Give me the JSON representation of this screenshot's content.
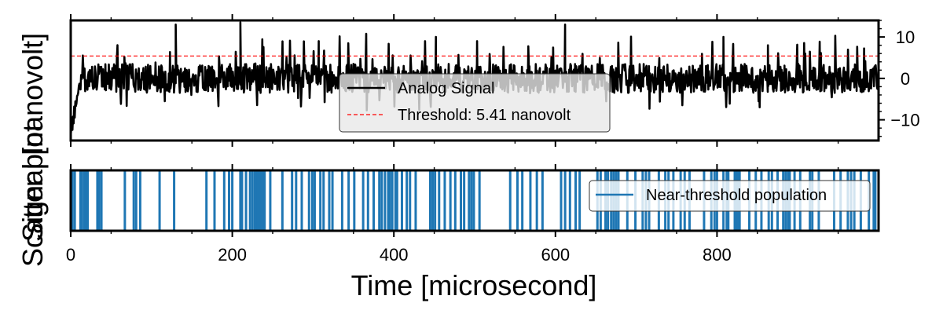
{
  "chart_data": {
    "type": "line",
    "xlabel": "Time [microsecond]",
    "xlim": [
      0,
      1000
    ],
    "x_ticks": [
      0,
      200,
      400,
      600,
      800
    ],
    "x_tick_labels": [
      "0",
      "200",
      "400",
      "600",
      "800"
    ],
    "ylabels_overlapping": [
      "Signal [nanovolt]",
      "Scatter plot"
    ],
    "top_panel": {
      "type": "line",
      "ylim": [
        -15,
        14
      ],
      "y_ticks": [
        -10,
        0,
        10
      ],
      "y_tick_labels": [
        "−10",
        "0",
        "10"
      ],
      "y_axis_side": "right",
      "threshold": 5.41,
      "signal_summary": {
        "baseline_mean": 0,
        "typical_range": [
          -5,
          5
        ],
        "onset_min": -13,
        "peaks": [
          {
            "x": 130,
            "y": 13
          },
          {
            "x": 210,
            "y": 13.5
          },
          {
            "x": 307,
            "y": 9
          },
          {
            "x": 452,
            "y": 10
          },
          {
            "x": 503,
            "y": 9
          },
          {
            "x": 612,
            "y": 13
          },
          {
            "x": 808,
            "y": 10
          },
          {
            "x": 863,
            "y": 8
          }
        ]
      },
      "series": [
        {
          "name": "Analog Signal",
          "color": "#000000",
          "style": "solid"
        },
        {
          "name": "Threshold: 5.41 nanovolt",
          "color": "#ff0000",
          "style": "dashed"
        }
      ],
      "legend_location": "bottom-center"
    },
    "bottom_panel": {
      "type": "eventplot",
      "series": [
        {
          "name": "Near-threshold population",
          "color": "#1f77b4"
        }
      ],
      "events": [
        2,
        5,
        12,
        14,
        17,
        19,
        21,
        33,
        35,
        38,
        67,
        78,
        81,
        86,
        110,
        128,
        168,
        178,
        190,
        196,
        200,
        210,
        212,
        217,
        222,
        225,
        228,
        230,
        232,
        234,
        236,
        238,
        240,
        247,
        262,
        274,
        279,
        286,
        295,
        299,
        302,
        309,
        313,
        320,
        324,
        336,
        344,
        351,
        362,
        368,
        375,
        382,
        385,
        389,
        393,
        395,
        398,
        402,
        404,
        410,
        416,
        420,
        427,
        445,
        448,
        451,
        456,
        463,
        470,
        476,
        483,
        487,
        493,
        496,
        499,
        506,
        544,
        553,
        559,
        569,
        577,
        584,
        607,
        612,
        618,
        625,
        630,
        652,
        656,
        662,
        665,
        669,
        672,
        675,
        678,
        689,
        699,
        708,
        712,
        716,
        728,
        736,
        740,
        746,
        755,
        760,
        766,
        784,
        793,
        797,
        800,
        808,
        812,
        814,
        822,
        824,
        826,
        828,
        840,
        848,
        855,
        864,
        868,
        875,
        882,
        885,
        888,
        890,
        896,
        903,
        915,
        918,
        926,
        945,
        953,
        962,
        966,
        970,
        978,
        988,
        994,
        996
      ],
      "legend_location": "top-right"
    }
  }
}
